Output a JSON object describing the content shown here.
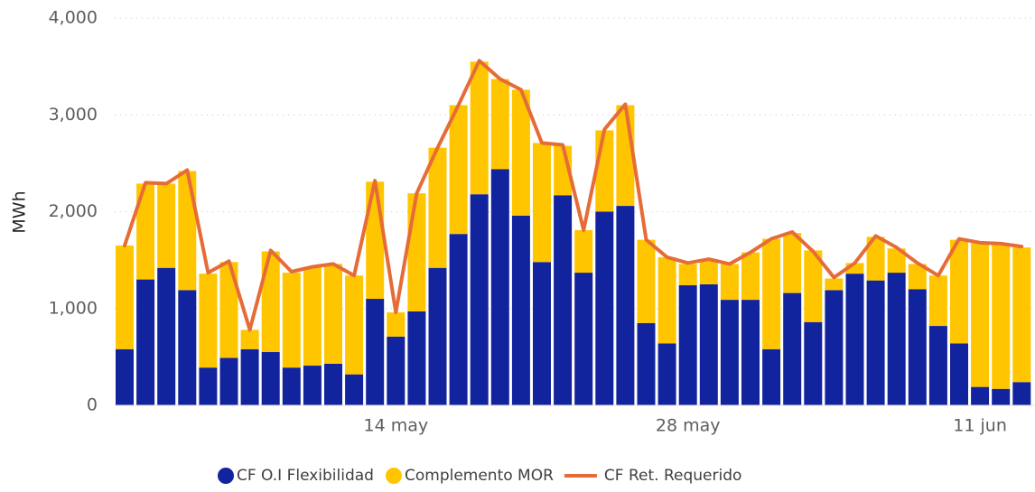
{
  "chart_data": {
    "type": "bar",
    "stacked": true,
    "y_label": "MWh",
    "categories": [
      null,
      null,
      null,
      null,
      null,
      null,
      null,
      null,
      null,
      null,
      null,
      null,
      null,
      "14 may",
      null,
      null,
      null,
      null,
      null,
      null,
      null,
      null,
      null,
      null,
      null,
      null,
      null,
      "28 may",
      null,
      null,
      null,
      null,
      null,
      null,
      null,
      null,
      null,
      null,
      null,
      null,
      null,
      "11 jun",
      null,
      null
    ],
    "series": [
      {
        "name": "CF O.I Flexibilidad",
        "type": "bar",
        "color": "#12239e",
        "values": [
          580,
          1300,
          1420,
          1190,
          390,
          490,
          580,
          550,
          390,
          410,
          430,
          320,
          1100,
          710,
          970,
          1420,
          1770,
          2180,
          2440,
          1960,
          1480,
          2170,
          1370,
          2000,
          2060,
          850,
          640,
          1240,
          1250,
          1090,
          1090,
          580,
          1160,
          860,
          1190,
          1360,
          1290,
          1370,
          1200,
          820,
          640,
          190,
          170,
          240
        ]
      },
      {
        "name": "Complemento MOR",
        "type": "bar",
        "color": "#ffc600",
        "values": [
          1070,
          990,
          870,
          1230,
          970,
          990,
          200,
          1040,
          980,
          1020,
          1030,
          1020,
          1210,
          250,
          1220,
          1240,
          1330,
          1370,
          930,
          1300,
          1230,
          510,
          440,
          840,
          1040,
          860,
          890,
          220,
          260,
          370,
          490,
          1140,
          620,
          740,
          120,
          110,
          450,
          250,
          260,
          520,
          1070,
          1490,
          1500,
          1390
        ]
      },
      {
        "name": "CF Ret. Requerido",
        "type": "line",
        "color": "#e66c37",
        "values": [
          1650,
          2300,
          2290,
          2430,
          1370,
          1490,
          780,
          1600,
          1380,
          1430,
          1460,
          1340,
          2320,
          960,
          2190,
          2660,
          3100,
          3560,
          3370,
          3260,
          2710,
          2690,
          1810,
          2850,
          3110,
          1710,
          1530,
          1470,
          1510,
          1460,
          1580,
          1720,
          1790,
          1590,
          1320,
          1470,
          1750,
          1630,
          1470,
          1340,
          1720,
          1680,
          1670,
          1640
        ]
      }
    ],
    "ylim": [
      0,
      4000
    ],
    "yticks": [
      0,
      {
        "value": 1000,
        "label": "1,000"
      },
      {
        "value": 2000,
        "label": "2,000"
      },
      {
        "value": 3000,
        "label": "3,000"
      },
      {
        "value": 4000,
        "label": "4,000"
      }
    ],
    "grid": true,
    "legend": "bottom"
  }
}
